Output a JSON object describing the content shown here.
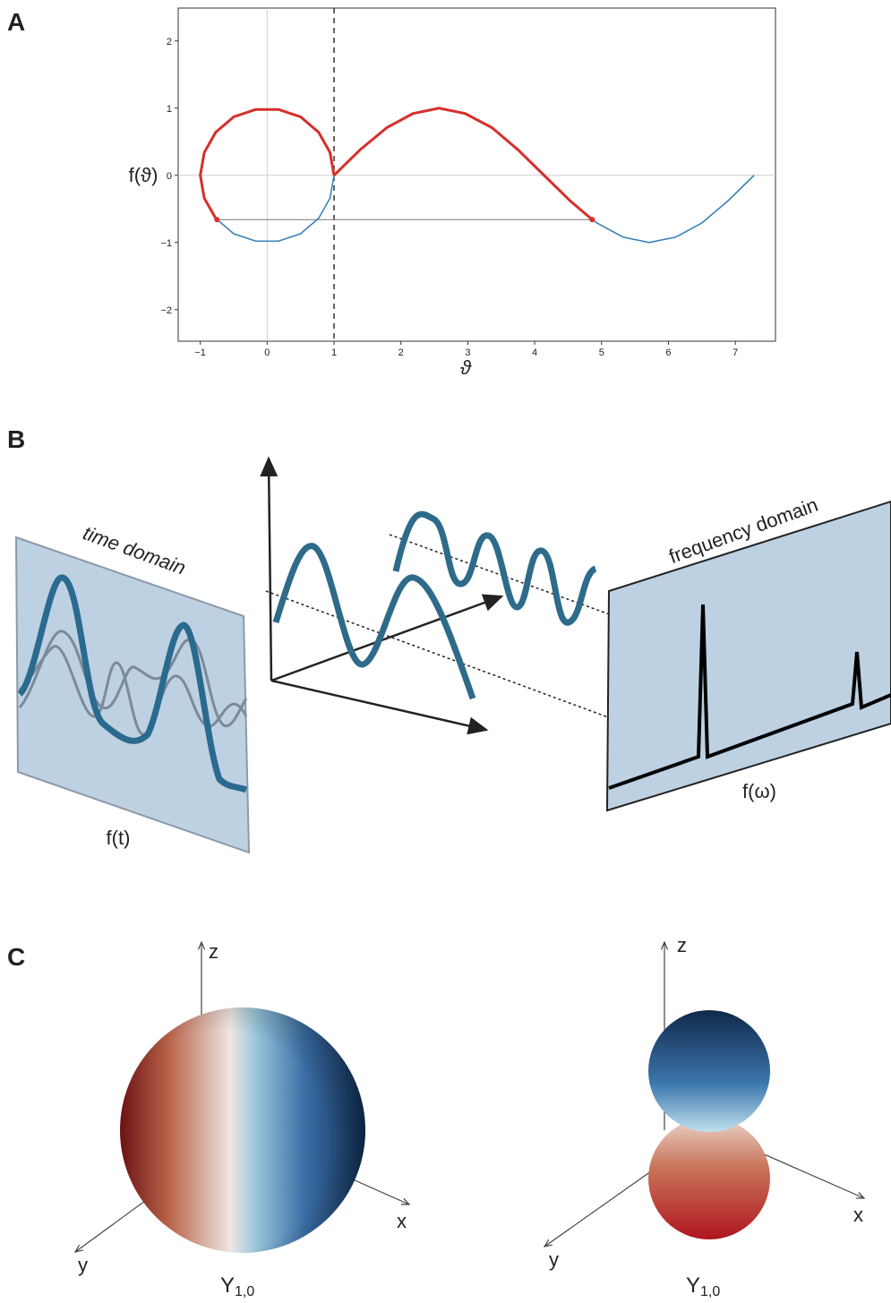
{
  "chart_data": {
    "type": "line",
    "xlabel": "ϑ",
    "ylabel": "f(ϑ)",
    "xlim": [
      -1.33,
      7.6
    ],
    "ylim": [
      -2.47,
      2.49
    ],
    "xticks": [
      {
        "value": -1,
        "label": "−1"
      },
      0,
      1,
      2,
      3,
      4,
      5,
      6,
      7
    ],
    "yticks": [
      {
        "value": -2,
        "label": "−2"
      },
      {
        "value": -1,
        "label": "−1"
      },
      0,
      1,
      2
    ],
    "zero_lines": true,
    "series": [
      {
        "color": "#3a82b8",
        "x": [
          1,
          0.94,
          0.77,
          0.5,
          0.17,
          -0.17,
          -0.5,
          -0.77,
          -0.94,
          -1,
          -0.94,
          -0.77,
          -0.5,
          -0.17,
          0.17,
          0.5,
          0.77,
          0.94,
          1,
          1.39,
          1.79,
          2.18,
          2.57,
          2.96,
          3.36,
          3.75,
          4.14,
          4.53,
          4.93,
          5.32,
          5.71,
          6.11,
          6.5,
          6.89,
          7.28
        ],
        "y": [
          0,
          0.34,
          0.64,
          0.87,
          0.98,
          0.98,
          0.87,
          0.64,
          0.34,
          0,
          -0.34,
          -0.64,
          -0.87,
          -0.98,
          -0.98,
          -0.87,
          -0.64,
          -0.34,
          0,
          0.38,
          0.71,
          0.92,
          1,
          0.92,
          0.71,
          0.38,
          0,
          -0.38,
          -0.71,
          -0.92,
          -1,
          -0.92,
          -0.71,
          -0.38,
          0
        ]
      },
      {
        "color": "#d62f2a",
        "x": [
          1,
          0.94,
          0.77,
          0.5,
          0.17,
          -0.17,
          -0.5,
          -0.77,
          -0.94,
          -1,
          -0.94,
          -0.77,
          -0.75,
          null,
          1,
          1.39,
          1.79,
          2.18,
          2.57,
          2.96,
          3.36,
          3.75,
          4.14,
          4.53,
          4.86
        ],
        "y": [
          0,
          0.34,
          0.64,
          0.87,
          0.98,
          0.98,
          0.87,
          0.64,
          0.34,
          0,
          -0.34,
          -0.64,
          -0.66,
          null,
          0,
          0.38,
          0.71,
          0.92,
          1,
          0.92,
          0.71,
          0.38,
          0,
          -0.38,
          -0.66
        ]
      }
    ],
    "markers": {
      "color": "#d62f2a",
      "x": [
        -0.75,
        4.86
      ],
      "y": [
        -0.66,
        -0.66
      ]
    },
    "vline": 1
  },
  "panel_labels": [
    "A",
    "B",
    "C"
  ],
  "panel_b": {
    "time_label": "time domain",
    "freq_label": "frequency domain",
    "time_axis": "f(t)",
    "freq_axis": "f(ω)"
  },
  "panel_c": {
    "left": {
      "z": "z",
      "x": "x",
      "y": "y",
      "label": "Y",
      "subscript": "1,0"
    },
    "right": {
      "z": "z",
      "x": "x",
      "y": "y",
      "label": "Y",
      "subscript": "1,0"
    }
  }
}
